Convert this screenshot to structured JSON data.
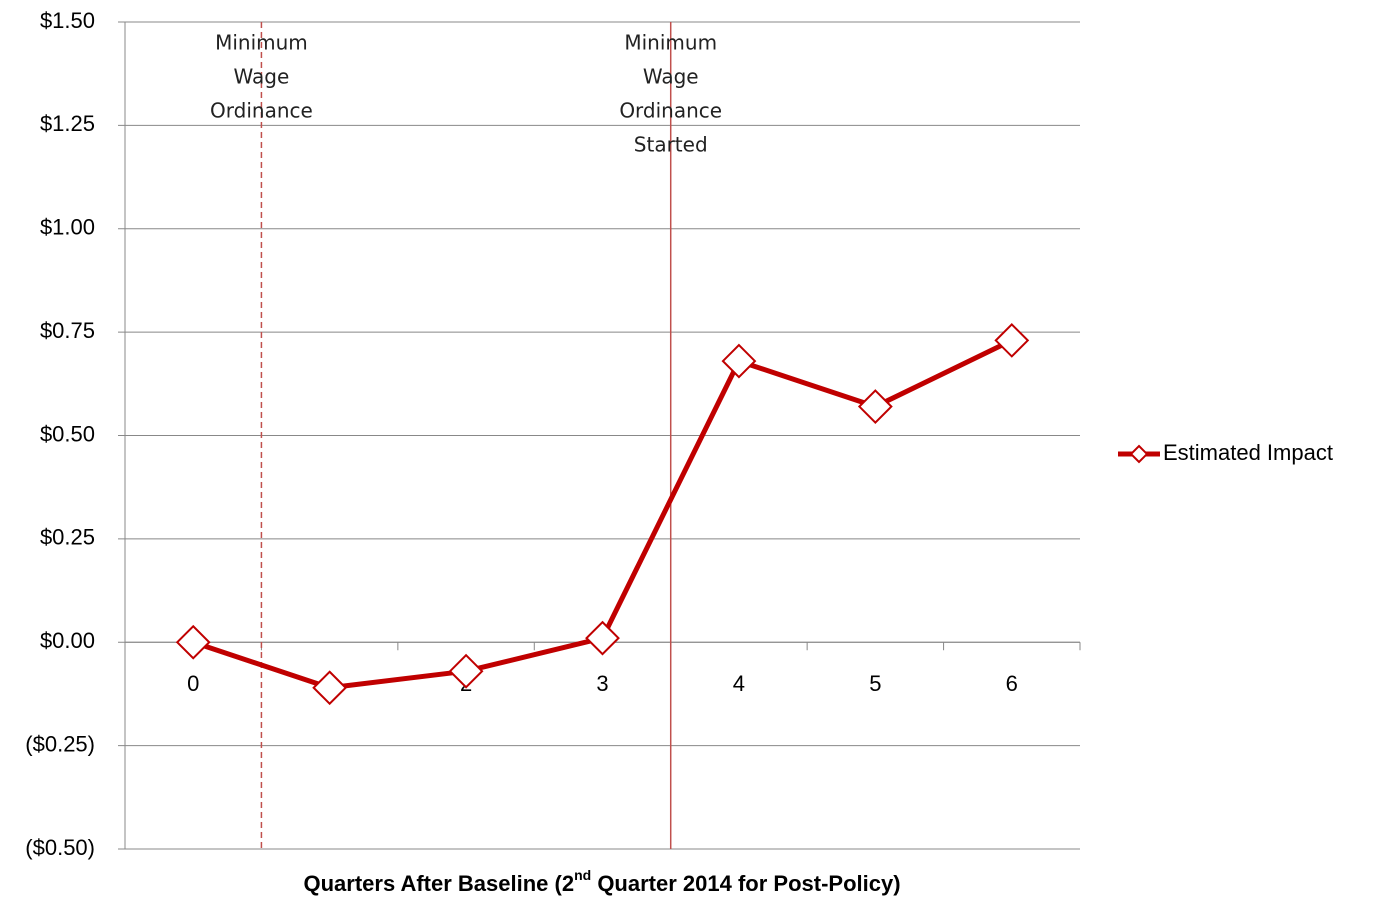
{
  "chart_data": {
    "type": "line",
    "categories": [
      "0",
      "1",
      "2",
      "3",
      "4",
      "5",
      "6"
    ],
    "series": [
      {
        "name": "Estimated Impact",
        "color": "#c00000",
        "values": [
          0,
          -0.11,
          -0.07,
          0.01,
          0.68,
          0.57,
          0.73
        ]
      }
    ],
    "ylim": [
      -0.5,
      1.5
    ],
    "yticks": [
      {
        "value": -0.5,
        "label": "($0.50)"
      },
      {
        "value": -0.25,
        "label": "($0.25)"
      },
      {
        "value": 0,
        "label": "$0.00"
      },
      {
        "value": 0.25,
        "label": "$0.25"
      },
      {
        "value": 0.5,
        "label": "$0.50"
      },
      {
        "value": 0.75,
        "label": "$0.75"
      },
      {
        "value": 1.0,
        "label": "$1.00"
      },
      {
        "value": 1.25,
        "label": "$1.25"
      },
      {
        "value": 1.5,
        "label": "$1.50"
      }
    ],
    "grid": true,
    "legend": "right",
    "xlabel": [
      "Quarters After Baseline (2",
      "nd",
      " Quarter 2014 for Post-Policy)"
    ],
    "annotations": [
      {
        "lines": [
          "Minimum",
          "Wage",
          "Ordinance"
        ],
        "x": 0.5,
        "style": "dashed",
        "color": "#c0504d"
      },
      {
        "lines": [
          "Minimum",
          "Wage",
          "Ordinance",
          "Started"
        ],
        "x": 3.5,
        "style": "solid",
        "color": "#c0504d"
      }
    ]
  }
}
